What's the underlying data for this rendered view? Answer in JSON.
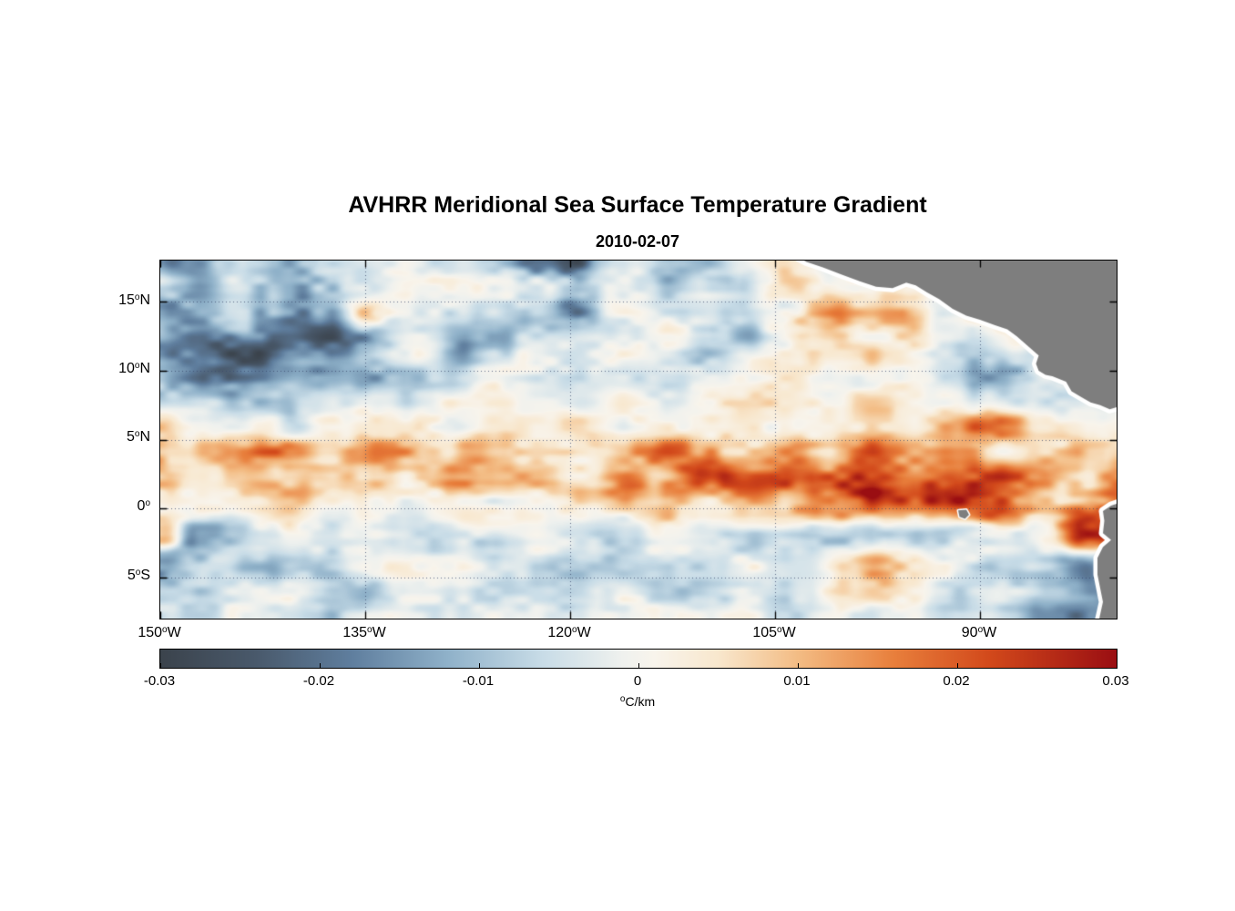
{
  "page": {
    "background": "#ffffff"
  },
  "chart_data": {
    "type": "heatmap",
    "title": "AVHRR Meridional Sea Surface Temperature Gradient",
    "subtitle": "2010-02-07",
    "colorbar_label": {
      "sup": "o",
      "text": "C/km"
    },
    "lon_range": [
      -150,
      -80
    ],
    "lat_range": [
      -8,
      18
    ],
    "grid": {
      "lon_start": -150,
      "lon_step": 2.5,
      "lat_start": 18,
      "lat_step": -2,
      "cols": 29,
      "rows": 14
    },
    "value_range": [
      -0.03,
      0.03
    ],
    "values": [
      [
        -0.01,
        -0.013,
        -0.008,
        -0.016,
        -0.018,
        -0.01,
        -0.004,
        -0.002,
        -0.005,
        -0.003,
        -0.007,
        -0.016,
        -0.018,
        -0.008,
        -0.004,
        -0.01,
        -0.013,
        -0.005,
        0.002,
        0.0,
        0.0,
        0.0,
        0.0,
        0.0,
        0.0,
        0.0,
        0.0,
        0.0,
        0.0
      ],
      [
        -0.008,
        -0.01,
        -0.006,
        -0.013,
        -0.017,
        -0.013,
        -0.005,
        -0.002,
        -0.004,
        -0.002,
        -0.004,
        -0.009,
        -0.012,
        -0.006,
        -0.002,
        -0.008,
        -0.01,
        -0.004,
        0.003,
        0.006,
        0.006,
        0.012,
        0.0,
        0.0,
        0.0,
        0.0,
        0.0,
        0.0,
        0.0
      ],
      [
        -0.01,
        -0.012,
        -0.009,
        -0.016,
        -0.02,
        -0.012,
        0.006,
        -0.004,
        -0.006,
        -0.008,
        -0.006,
        -0.015,
        -0.013,
        -0.004,
        -0.002,
        -0.005,
        -0.008,
        -0.003,
        0.004,
        0.01,
        0.013,
        0.018,
        0.012,
        -0.008,
        0.0,
        0.0,
        0.0,
        0.0,
        0.0
      ],
      [
        -0.012,
        -0.018,
        -0.022,
        -0.02,
        -0.016,
        -0.018,
        -0.014,
        -0.006,
        -0.004,
        -0.012,
        -0.012,
        -0.004,
        -0.003,
        -0.002,
        -0.003,
        -0.004,
        -0.01,
        -0.009,
        -0.002,
        0.002,
        0.003,
        0.004,
        0.004,
        -0.004,
        -0.008,
        0.0,
        0.0,
        0.0,
        0.0
      ],
      [
        -0.01,
        -0.014,
        -0.02,
        -0.018,
        -0.012,
        -0.008,
        -0.01,
        -0.006,
        -0.003,
        -0.005,
        -0.004,
        -0.002,
        -0.002,
        -0.001,
        -0.002,
        -0.003,
        -0.004,
        -0.002,
        0.001,
        0.002,
        0.002,
        0.003,
        0.002,
        -0.004,
        -0.01,
        -0.008,
        0.0,
        0.0,
        0.0
      ],
      [
        -0.013,
        -0.01,
        -0.012,
        -0.008,
        -0.004,
        -0.005,
        -0.006,
        -0.003,
        -0.002,
        -0.003,
        -0.002,
        -0.001,
        0.0,
        -0.001,
        -0.002,
        -0.002,
        -0.001,
        0.001,
        0.002,
        0.002,
        0.003,
        0.003,
        0.004,
        0.002,
        -0.004,
        -0.006,
        -0.004,
        0.0,
        0.0
      ],
      [
        0.012,
        -0.004,
        -0.002,
        0.002,
        -0.006,
        -0.003,
        -0.002,
        0.002,
        0.003,
        0.002,
        0.001,
        0.002,
        0.003,
        0.002,
        0.003,
        0.004,
        0.003,
        0.004,
        0.003,
        0.004,
        0.005,
        0.004,
        0.006,
        0.008,
        0.014,
        0.012,
        0.006,
        0.002,
        0.0
      ],
      [
        0.016,
        0.006,
        0.013,
        0.015,
        0.012,
        0.004,
        0.01,
        0.011,
        0.006,
        0.014,
        0.008,
        0.006,
        0.008,
        0.007,
        0.01,
        0.017,
        0.02,
        0.012,
        0.009,
        0.012,
        0.014,
        0.016,
        0.012,
        0.01,
        0.012,
        0.009,
        0.01,
        0.012,
        0.01
      ],
      [
        0.014,
        0.004,
        0.006,
        0.01,
        0.008,
        0.006,
        0.008,
        0.01,
        0.014,
        0.016,
        0.013,
        0.012,
        0.012,
        0.01,
        0.016,
        0.018,
        0.016,
        0.02,
        0.022,
        0.024,
        0.025,
        0.024,
        0.023,
        0.02,
        0.018,
        0.016,
        0.012,
        0.014,
        0.018
      ],
      [
        0.008,
        0.002,
        0.001,
        0.002,
        0.003,
        -0.003,
        0.001,
        0.002,
        0.003,
        0.004,
        0.002,
        0.003,
        0.004,
        0.003,
        0.006,
        0.008,
        0.006,
        0.008,
        0.01,
        0.012,
        0.013,
        0.015,
        0.019,
        0.021,
        0.021,
        0.017,
        0.012,
        0.019,
        0.024
      ],
      [
        0.018,
        -0.013,
        -0.012,
        -0.004,
        -0.002,
        -0.003,
        -0.004,
        -0.002,
        -0.003,
        -0.002,
        -0.004,
        -0.003,
        -0.002,
        -0.004,
        -0.003,
        -0.002,
        -0.003,
        -0.004,
        -0.005,
        -0.011,
        -0.012,
        -0.008,
        -0.004,
        -0.01,
        -0.008,
        -0.004,
        0.004,
        0.02,
        0.022
      ],
      [
        -0.016,
        -0.011,
        -0.004,
        -0.006,
        -0.003,
        -0.008,
        -0.005,
        -0.003,
        -0.004,
        -0.002,
        -0.003,
        -0.004,
        -0.005,
        -0.003,
        -0.002,
        -0.003,
        -0.004,
        -0.002,
        -0.003,
        -0.004,
        0.004,
        0.011,
        0.004,
        -0.003,
        -0.006,
        -0.005,
        -0.008,
        -0.014,
        -0.01
      ],
      [
        -0.012,
        -0.008,
        -0.005,
        -0.004,
        -0.006,
        -0.01,
        -0.009,
        -0.004,
        -0.003,
        -0.004,
        -0.005,
        -0.003,
        -0.006,
        -0.004,
        -0.003,
        -0.004,
        -0.003,
        -0.004,
        -0.003,
        -0.002,
        0.004,
        0.006,
        0.002,
        -0.004,
        -0.006,
        -0.01,
        -0.017,
        -0.02,
        -0.014
      ],
      [
        -0.008,
        -0.006,
        -0.004,
        -0.005,
        -0.004,
        -0.006,
        -0.005,
        -0.004,
        -0.006,
        -0.004,
        -0.003,
        -0.004,
        -0.008,
        -0.005,
        -0.004,
        -0.003,
        -0.004,
        -0.003,
        -0.004,
        -0.003,
        -0.002,
        0.002,
        0.0,
        -0.003,
        -0.005,
        -0.008,
        -0.014,
        -0.016,
        -0.012
      ]
    ],
    "colormap": [
      {
        "v": -0.03,
        "c": "#3b434c"
      },
      {
        "v": -0.024,
        "c": "#49596b"
      },
      {
        "v": -0.018,
        "c": "#5f7e9e"
      },
      {
        "v": -0.012,
        "c": "#8fb1c9"
      },
      {
        "v": -0.006,
        "c": "#c8dce7"
      },
      {
        "v": -0.001,
        "c": "#eff1ee"
      },
      {
        "v": 0.001,
        "c": "#f8f4ec"
      },
      {
        "v": 0.005,
        "c": "#f8e7cd"
      },
      {
        "v": 0.01,
        "c": "#f3bc84"
      },
      {
        "v": 0.016,
        "c": "#e87f3c"
      },
      {
        "v": 0.022,
        "c": "#d2491b"
      },
      {
        "v": 0.03,
        "c": "#9a0e12"
      }
    ],
    "colorbar_ticks": [
      "-0.03",
      "-0.02",
      "-0.01",
      "0",
      "0.01",
      "0.02",
      "0.03"
    ],
    "xticks": [
      {
        "num": "150",
        "sup": "o",
        "hem": "W",
        "lon": -150
      },
      {
        "num": "135",
        "sup": "o",
        "hem": "W",
        "lon": -135
      },
      {
        "num": "120",
        "sup": "o",
        "hem": "W",
        "lon": -120
      },
      {
        "num": "105",
        "sup": "o",
        "hem": "W",
        "lon": -105
      },
      {
        "num": "90",
        "sup": "o",
        "hem": "W",
        "lon": -90
      }
    ],
    "yticks": [
      {
        "num": "15",
        "sup": "o",
        "hem": "N",
        "lat": 15
      },
      {
        "num": "10",
        "sup": "o",
        "hem": "N",
        "lat": 10
      },
      {
        "num": "5",
        "sup": "o",
        "hem": "N",
        "lat": 5
      },
      {
        "num": "0",
        "sup": "o",
        "hem": "",
        "lat": 0
      },
      {
        "num": "5",
        "sup": "o",
        "hem": "S",
        "lat": -5
      }
    ],
    "gridlines": {
      "color": "#3c4b6e",
      "dash": [
        1,
        3
      ],
      "lat": [
        15,
        10,
        5,
        0,
        -5
      ],
      "lon": [
        -135,
        -120,
        -105,
        -90
      ]
    },
    "axis_color": "#000000",
    "land": {
      "color": "#7e7e7e",
      "coast_gap_color": "#ffffff",
      "polygons": [
        {
          "name": "central-america",
          "gap": 9,
          "points": [
            [
              -104.0,
              18.6
            ],
            [
              -79.5,
              18.6
            ],
            [
              -79.5,
              7.5
            ],
            [
              -80.5,
              7.2
            ],
            [
              -81.2,
              7.5
            ],
            [
              -81.9,
              7.7
            ],
            [
              -82.6,
              8.1
            ],
            [
              -83.3,
              8.5
            ],
            [
              -83.7,
              9.2
            ],
            [
              -84.7,
              9.6
            ],
            [
              -85.2,
              9.7
            ],
            [
              -85.7,
              10.0
            ],
            [
              -85.9,
              10.5
            ],
            [
              -85.7,
              11.1
            ],
            [
              -86.5,
              11.8
            ],
            [
              -87.3,
              12.5
            ],
            [
              -88.0,
              13.0
            ],
            [
              -88.9,
              13.3
            ],
            [
              -90.0,
              13.7
            ],
            [
              -91.0,
              14.0
            ],
            [
              -92.0,
              14.5
            ],
            [
              -93.0,
              15.2
            ],
            [
              -93.9,
              15.7
            ],
            [
              -94.7,
              16.2
            ],
            [
              -95.4,
              16.4
            ],
            [
              -96.4,
              16.0
            ],
            [
              -97.6,
              16.1
            ],
            [
              -98.8,
              16.5
            ],
            [
              -100.2,
              17.0
            ],
            [
              -101.5,
              17.5
            ],
            [
              -102.7,
              17.9
            ]
          ]
        },
        {
          "name": "south-america",
          "gap": 9,
          "points": [
            [
              -79.5,
              0.5
            ],
            [
              -79.5,
              -8.6
            ],
            [
              -81.4,
              -8.6
            ],
            [
              -81.0,
              -6.8
            ],
            [
              -81.2,
              -5.8
            ],
            [
              -81.4,
              -4.8
            ],
            [
              -81.4,
              -3.6
            ],
            [
              -81.0,
              -2.8
            ],
            [
              -80.4,
              -2.3
            ],
            [
              -81.0,
              -1.8
            ],
            [
              -80.9,
              -0.9
            ],
            [
              -81.0,
              -0.2
            ],
            [
              -80.4,
              0.2
            ]
          ]
        },
        {
          "name": "galapagos",
          "gap": 3,
          "points": [
            [
              -91.6,
              -0.15
            ],
            [
              -91.0,
              -0.1
            ],
            [
              -90.8,
              -0.45
            ],
            [
              -91.1,
              -0.75
            ],
            [
              -91.5,
              -0.6
            ]
          ]
        }
      ]
    }
  }
}
